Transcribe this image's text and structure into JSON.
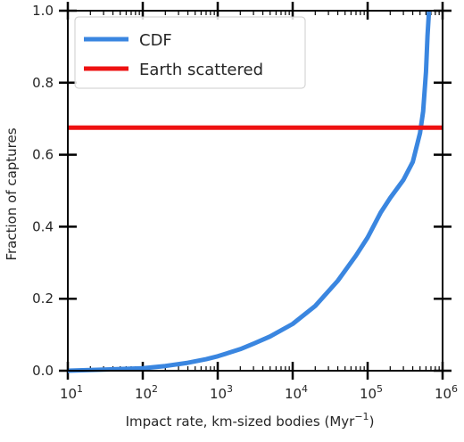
{
  "chart_data": {
    "type": "line",
    "title": "",
    "xlabel": "Impact rate, km-sized bodies (Myr",
    "xlabel_sup": "−1",
    "xlabel_close": ")",
    "ylabel": "Fraction of captures",
    "xscale": "log",
    "xlim": [
      10,
      1000000
    ],
    "ylim": [
      0,
      1.0
    ],
    "x_ticks": [
      {
        "value": 10,
        "base": "10",
        "exp": "1"
      },
      {
        "value": 100,
        "base": "10",
        "exp": "2"
      },
      {
        "value": 1000,
        "base": "10",
        "exp": "3"
      },
      {
        "value": 10000,
        "base": "10",
        "exp": "4"
      },
      {
        "value": 100000,
        "base": "10",
        "exp": "5"
      },
      {
        "value": 1000000,
        "base": "10",
        "exp": "6"
      }
    ],
    "y_ticks": [
      {
        "value": 0.0,
        "label": "0.0"
      },
      {
        "value": 0.2,
        "label": "0.2"
      },
      {
        "value": 0.4,
        "label": "0.4"
      },
      {
        "value": 0.6,
        "label": "0.6"
      },
      {
        "value": 0.8,
        "label": "0.8"
      },
      {
        "value": 1.0,
        "label": "1.0"
      }
    ],
    "grid": false,
    "legend_position": "top-left",
    "series": [
      {
        "name": "CDF",
        "color": "#3a86e0",
        "kind": "line",
        "x": [
          10,
          30,
          100,
          200,
          400,
          700,
          1000,
          2000,
          3000,
          5000,
          10000,
          20000,
          40000,
          70000,
          100000,
          150000,
          200000,
          300000,
          400000,
          500000,
          550000,
          600000,
          630000,
          660000
        ],
        "y": [
          0.0,
          0.003,
          0.007,
          0.013,
          0.022,
          0.032,
          0.04,
          0.06,
          0.075,
          0.095,
          0.13,
          0.18,
          0.25,
          0.32,
          0.37,
          0.44,
          0.48,
          0.53,
          0.58,
          0.66,
          0.72,
          0.83,
          0.93,
          1.0
        ]
      },
      {
        "name": "Earth scattered",
        "color": "#ee1111",
        "kind": "hline",
        "y": 0.675
      }
    ]
  }
}
